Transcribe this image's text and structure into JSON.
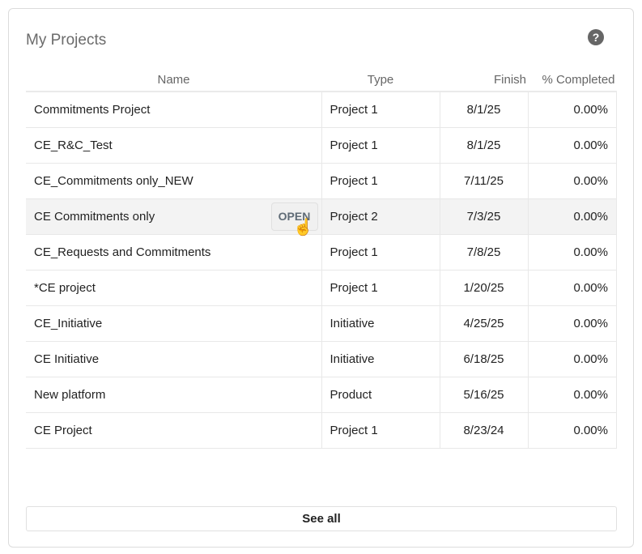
{
  "title": "My Projects",
  "help_icon": "question-circle-icon",
  "columns": [
    "Name",
    "Type",
    "Finish",
    "% Completed"
  ],
  "rows": [
    {
      "name": "Commitments Project",
      "type": "Project 1",
      "finish": "8/1/25",
      "completed": "0.00%"
    },
    {
      "name": "CE_R&C_Test",
      "type": "Project 1",
      "finish": "8/1/25",
      "completed": "0.00%"
    },
    {
      "name": "CE_Commitments only_NEW",
      "type": "Project 1",
      "finish": "7/11/25",
      "completed": "0.00%"
    },
    {
      "name": "CE Commitments only",
      "type": "Project 2",
      "finish": "7/3/25",
      "completed": "0.00%"
    },
    {
      "name": "CE_Requests and Commitments",
      "type": "Project 1",
      "finish": "7/8/25",
      "completed": "0.00%"
    },
    {
      "name": "*CE project",
      "type": "Project 1",
      "finish": "1/20/25",
      "completed": "0.00%"
    },
    {
      "name": "CE_Initiative",
      "type": "Initiative",
      "finish": "4/25/25",
      "completed": "0.00%"
    },
    {
      "name": "CE Initiative",
      "type": "Initiative",
      "finish": "6/18/25",
      "completed": "0.00%"
    },
    {
      "name": "New platform",
      "type": "Product",
      "finish": "5/16/25",
      "completed": "0.00%"
    },
    {
      "name": "CE Project",
      "type": "Project 1",
      "finish": "8/23/24",
      "completed": "0.00%"
    }
  ],
  "open_label": "OPEN",
  "hovered_row": 3,
  "see_all": "See all"
}
